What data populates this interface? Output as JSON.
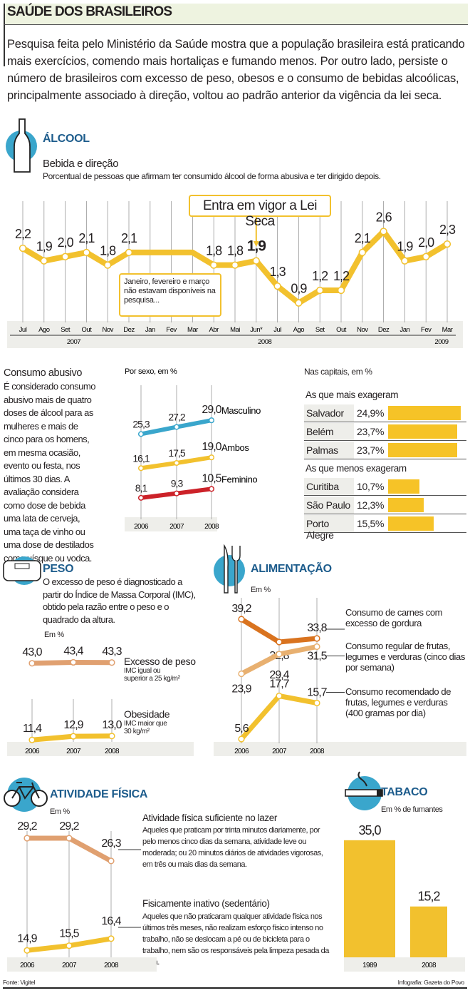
{
  "title": "SAÚDE DOS BRASILEIROS",
  "intro": "Pesquisa feita pelo Ministério da Saúde mostra que a população brasileira está praticando mais exercícios, comendo mais hortaliças e fumando menos. Por outro lado, persiste o número de brasileiros com excesso de peso, obesos e o consumo de bebidas alcoólicas, principalmente associado à direção, voltou ao padrão anterior da vigência da lei seca.",
  "colors": {
    "accent_blue": "#3aa6cc",
    "section_title": "#1d5c8c",
    "yellow": "#f2c12e",
    "masculino": "#3aa6cc",
    "feminino": "#cc2229",
    "carnes": "#d9731f",
    "tan": "#e0a070"
  },
  "alcool": {
    "section": "ÁLCOOL",
    "icon": "bottle-icon",
    "chart_title": "Bebida e direção",
    "chart_subtitle": "Porcentual de pessoas que afirmam ter consumido álcool de forma abusiva e ter dirigido depois.",
    "callout": "Entra em vigor a Lei Seca",
    "note": "Janeiro, fevereiro e março não estavam disponíveis na pesquisa...",
    "consumo_title": "Consumo abusivo",
    "consumo_text": "É considerado consumo abusivo mais de quatro doses de álcool para as mulheres e mais de cinco para os homens, em mesma ocasião, evento ou festa, nos últimos 30 dias. A avaliação considera como dose de bebida uma lata de cerveja, uma taça de vinho ou uma dose de destilados como uísque ou vodca.",
    "capitais_title": "Nas capitais, em %",
    "mais_title": "As que mais exageram",
    "menos_title": "As que menos exageram"
  },
  "peso": {
    "section": "PESO",
    "icon": "scale-icon",
    "text": "O excesso de peso é diagnosticado a partir do Índice de Massa Corporal (IMC), obtido pela razão entre o peso e o quadrado da altura.",
    "unit": "Em %",
    "excesso_label": "Excesso de peso",
    "excesso_note": "IMC igual ou superior a 25 kg/m²",
    "obesidade_label": "Obesidade",
    "obesidade_note": "IMC maior que 30 kg/m²"
  },
  "alimentacao": {
    "section": "ALIMENTAÇÃO",
    "icon": "fork-knife-icon",
    "unit": "Em %",
    "label1": "Consumo de carnes com excesso de gordura",
    "label2": "Consumo regular de frutas, legumes e verduras (cinco dias por semana)",
    "label3": "Consumo recomendado de frutas, legumes e verduras (400 gramas por dia)"
  },
  "atividade": {
    "section": "ATIVIDADE FÍSICA",
    "icon": "bicycle-icon",
    "unit": "Em %",
    "label1": "Atividade física suficiente no lazer",
    "text1": "Aqueles que praticam por trinta minutos diariamente, por pelo menos cinco dias da semana, atividade leve ou moderada; ou 20 minutos diários de atividades vigorosas, em três ou mais dias da semana.",
    "label2": "Fisicamente inativo (sedentário)",
    "text2": "Aqueles que não praticaram qualquer atividade física nos últimos três meses, não realizam esforço físico intenso no trabalho, não se deslocam a pé ou de bicicleta para o trabalho, nem são os responsáveis pela limpeza pesada da casa."
  },
  "tabaco": {
    "section": "TABACO",
    "icon": "cigarette-icon",
    "unit": "Em % de fumantes"
  },
  "footer": {
    "source": "Fonte: Vigitel",
    "credit": "Infografia: Gazeta do Povo"
  },
  "chart_data": [
    {
      "id": "bebida",
      "type": "line",
      "title": "Bebida e direção",
      "categories": [
        "Jul",
        "Ago",
        "Set",
        "Out",
        "Nov",
        "Dez",
        "Jan",
        "Fev",
        "Mar",
        "Abr",
        "Mai",
        "Jun*",
        "Jul",
        "Ago",
        "Set",
        "Out",
        "Nov",
        "Dez",
        "Jan",
        "Fev",
        "Mar"
      ],
      "years": [
        {
          "label": "2007",
          "from": 0,
          "to": 5
        },
        {
          "label": "2008",
          "from": 6,
          "to": 17
        },
        {
          "label": "2009",
          "from": 18,
          "to": 20
        }
      ],
      "values": [
        2.2,
        1.9,
        2.0,
        2.1,
        1.8,
        2.1,
        null,
        null,
        null,
        1.8,
        1.8,
        1.9,
        1.3,
        0.9,
        1.2,
        1.2,
        2.1,
        2.6,
        1.9,
        2.0,
        2.3
      ],
      "labels": [
        "2,2",
        "1,9",
        "2,0",
        "2,1",
        "1,8",
        "2,1",
        "",
        "",
        "",
        "1,8",
        "1,8",
        "1,9",
        "1,3",
        "0,9",
        "1,2",
        "1,2",
        "2,1",
        "2,6",
        "1,9",
        "2,0",
        "2,3"
      ],
      "grid": true
    },
    {
      "id": "sexo",
      "type": "line",
      "title": "Por sexo, em %",
      "categories": [
        "2006",
        "2007",
        "2008"
      ],
      "series": [
        {
          "name": "Masculino",
          "values": [
            25.3,
            27.2,
            29.0
          ],
          "labels": [
            "25,3",
            "27,2",
            "29,0"
          ],
          "color": "#3aa6cc"
        },
        {
          "name": "Ambos",
          "values": [
            16.1,
            17.5,
            19.0
          ],
          "labels": [
            "16,1",
            "17,5",
            "19,0"
          ],
          "color": "#f2c12e"
        },
        {
          "name": "Feminino",
          "values": [
            8.1,
            9.3,
            10.5
          ],
          "labels": [
            "8,1",
            "9,3",
            "10,5"
          ],
          "color": "#cc2229"
        }
      ]
    },
    {
      "id": "capitais",
      "type": "bar",
      "title": "Nas capitais, em %",
      "mais": [
        {
          "city": "Salvador",
          "value": 24.9,
          "label": "24,9%"
        },
        {
          "city": "Belém",
          "value": 23.7,
          "label": "23,7%"
        },
        {
          "city": "Palmas",
          "value": 23.7,
          "label": "23,7%"
        }
      ],
      "menos": [
        {
          "city": "Curitiba",
          "value": 10.7,
          "label": "10,7%"
        },
        {
          "city": "São Paulo",
          "value": 12.3,
          "label": "12,3%"
        },
        {
          "city": "Porto Alegre",
          "value": 15.5,
          "label": "15,5%"
        }
      ]
    },
    {
      "id": "peso",
      "type": "line",
      "categories": [
        "2006",
        "2007",
        "2008"
      ],
      "series": [
        {
          "name": "Excesso de peso",
          "values": [
            43.0,
            43.4,
            43.3
          ],
          "labels": [
            "43,0",
            "43,4",
            "43,3"
          ],
          "color": "#e0a070"
        },
        {
          "name": "Obesidade",
          "values": [
            11.4,
            12.9,
            13.0
          ],
          "labels": [
            "11,4",
            "12,9",
            "13,0"
          ],
          "color": "#f2c12e"
        }
      ]
    },
    {
      "id": "alimentacao",
      "type": "line",
      "categories": [
        "2006",
        "2007",
        "2008"
      ],
      "series": [
        {
          "name": "Consumo de carnes com excesso de gordura",
          "values": [
            39.2,
            32.8,
            33.8
          ],
          "labels": [
            "39,2",
            "32,8",
            "33,8"
          ],
          "color": "#d9731f"
        },
        {
          "name": "Consumo regular de frutas, legumes e verduras (cinco dias por semana)",
          "values": [
            23.9,
            29.4,
            31.5
          ],
          "labels": [
            "23,9",
            "29,4",
            "31,5"
          ],
          "color": "#e8b070"
        },
        {
          "name": "Consumo recomendado de frutas, legumes e verduras (400 gramas por dia)",
          "values": [
            5.6,
            17.7,
            15.7
          ],
          "labels": [
            "5,6",
            "17,7",
            "15,7"
          ],
          "color": "#f2c12e"
        }
      ]
    },
    {
      "id": "atividade",
      "type": "line",
      "categories": [
        "2006",
        "2007",
        "2008"
      ],
      "series": [
        {
          "name": "Atividade física suficiente no lazer",
          "values": [
            29.2,
            29.2,
            26.3
          ],
          "labels": [
            "29,2",
            "29,2",
            "26,3"
          ],
          "color": "#e0a070"
        },
        {
          "name": "Fisicamente inativo (sedentário)",
          "values": [
            14.9,
            15.5,
            16.4
          ],
          "labels": [
            "14,9",
            "15,5",
            "16,4"
          ],
          "color": "#f2c12e"
        }
      ]
    },
    {
      "id": "tabaco",
      "type": "bar",
      "title": "Em % de fumantes",
      "categories": [
        "1989",
        "2008"
      ],
      "values": [
        35.0,
        15.2
      ],
      "labels": [
        "35,0",
        "15,2"
      ]
    }
  ]
}
